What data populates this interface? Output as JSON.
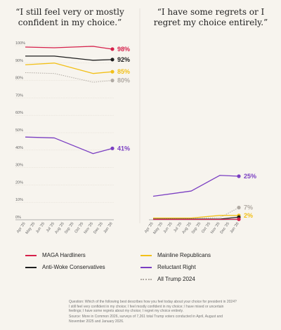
{
  "headers": {
    "left": "“I still feel very or mostly confident in my choice.”",
    "right": "“I have some regrets or I regret my choice entirely.”"
  },
  "chart_data": [
    {
      "type": "line",
      "panel": "left",
      "x": [
        "Apr '25",
        "May '25",
        "Jun '25",
        "Jul '25",
        "Aug '25",
        "Sep '25",
        "Oct '25",
        "Nov '25",
        "Dec '25",
        "Jan '26"
      ],
      "y_ticks": [
        "0%",
        "10%",
        "20%",
        "30%",
        "40%",
        "50%",
        "60%",
        "70%",
        "80%",
        "90%",
        "100%"
      ],
      "ylim": [
        0,
        100
      ],
      "series": [
        {
          "name": "MAGA Hardliners",
          "color": "#d6204b",
          "dashed": false,
          "end_label": "98%",
          "points": [
            [
              "Apr '25",
              99.2
            ],
            [
              "Jul '25",
              98.8
            ],
            [
              "Nov '25",
              99.6
            ],
            [
              "Jan '26",
              98
            ]
          ]
        },
        {
          "name": "Anti-Woke Conservatives",
          "color": "#1e1e1e",
          "dashed": false,
          "end_label": "92%",
          "points": [
            [
              "Apr '25",
              94
            ],
            [
              "Jul '25",
              94
            ],
            [
              "Nov '25",
              91.6
            ],
            [
              "Jan '26",
              92
            ]
          ]
        },
        {
          "name": "Mainline Republicans",
          "color": "#f2c018",
          "dashed": false,
          "end_label": "85%",
          "points": [
            [
              "Apr '25",
              89
            ],
            [
              "Jul '25",
              90
            ],
            [
              "Nov '25",
              84
            ],
            [
              "Jan '26",
              85
            ]
          ]
        },
        {
          "name": "All Trump 2024",
          "color": "#b0aaa3",
          "dashed": true,
          "end_label": "80%",
          "points": [
            [
              "Apr '25",
              84.5
            ],
            [
              "Jul '25",
              84
            ],
            [
              "Nov '25",
              79
            ],
            [
              "Jan '26",
              80
            ]
          ]
        },
        {
          "name": "Reluctant Right",
          "color": "#7a3ec2",
          "dashed": false,
          "end_label": "41%",
          "points": [
            [
              "Apr '25",
              47.5
            ],
            [
              "Jul '25",
              47
            ],
            [
              "Nov '25",
              38
            ],
            [
              "Jan '26",
              41
            ]
          ]
        }
      ]
    },
    {
      "type": "line",
      "panel": "right",
      "x": [
        "Apr '25",
        "May '25",
        "Jun '25",
        "Jul '25",
        "Aug '25",
        "Sep '25",
        "Oct '25",
        "Nov '25",
        "Dec '25",
        "Jan '26"
      ],
      "ylim": [
        0,
        100
      ],
      "series": [
        {
          "name": "Reluctant Right",
          "color": "#7a3ec2",
          "dashed": false,
          "end_label": "25%",
          "points": [
            [
              "Apr '25",
              13.5
            ],
            [
              "Aug '25",
              16.5
            ],
            [
              "Nov '25",
              25.5
            ],
            [
              "Jan '26",
              25
            ]
          ]
        },
        {
          "name": "All Trump 2024",
          "color": "#b0aaa3",
          "dashed": true,
          "end_label": "7%",
          "points": [
            [
              "Apr '25",
              0.5
            ],
            [
              "Aug '25",
              0.8
            ],
            [
              "Nov '25",
              1.2
            ],
            [
              "Jan '26",
              7
            ]
          ]
        },
        {
          "name": "Mainline Republicans",
          "color": "#f2c018",
          "dashed": false,
          "end_label": "2%",
          "points": [
            [
              "Apr '25",
              1
            ],
            [
              "Aug '25",
              1
            ],
            [
              "Nov '25",
              2.5
            ],
            [
              "Jan '26",
              2.5
            ]
          ]
        },
        {
          "name": "Anti-Woke Conservatives",
          "color": "#1e1e1e",
          "dashed": false,
          "end_label": "",
          "points": [
            [
              "Apr '25",
              0.4
            ],
            [
              "Aug '25",
              0.4
            ],
            [
              "Nov '25",
              0.4
            ],
            [
              "Jan '26",
              1.5
            ]
          ]
        },
        {
          "name": "MAGA Hardliners",
          "color": "#d6204b",
          "dashed": false,
          "end_label": "",
          "points": [
            [
              "Apr '25",
              0.2
            ],
            [
              "Aug '25",
              0.2
            ],
            [
              "Nov '25",
              0.2
            ],
            [
              "Jan '26",
              0.3
            ]
          ]
        }
      ]
    }
  ],
  "legend": [
    {
      "label": "MAGA Hardliners",
      "color": "#d6204b",
      "dashed": false
    },
    {
      "label": "Mainline Republicans",
      "color": "#f2c018",
      "dashed": false
    },
    {
      "label": "Anti-Woke Conservatives",
      "color": "#1e1e1e",
      "dashed": false
    },
    {
      "label": "Reluctant Right",
      "color": "#7a3ec2",
      "dashed": false
    },
    {
      "label": "All Trump 2024",
      "color": "#b0aaa3",
      "dashed": true
    }
  ],
  "footnote": {
    "question": "Question: Which of the following best describes how you feel today about your choice for president in 2024? I still feel very confident in my choice; I feel mostly confident in my choice; I have mixed or uncertain feelings; I have some regrets about my choice; I regret my choice entirely.",
    "source": "Source: More in Common 2026, surveys of 7,261 total Trump voters conducted in April, August and November 2025 and January 2026."
  }
}
